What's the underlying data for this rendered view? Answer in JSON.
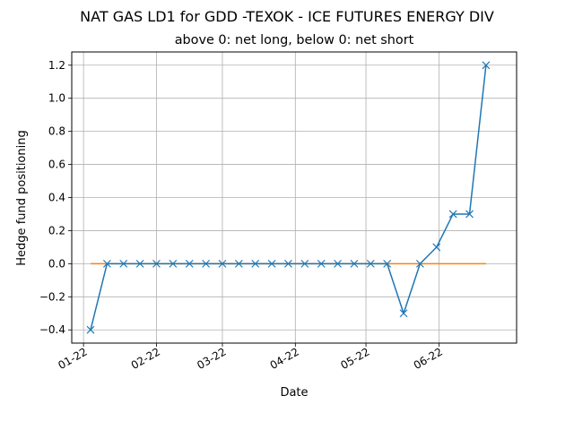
{
  "chart_data": {
    "type": "line",
    "title": "NAT GAS LD1 for GDD -TEXOK - ICE FUTURES ENERGY DIV",
    "subtitle": "above 0: net long, below 0: net short",
    "xlabel": "Date",
    "ylabel": "Hedge fund positioning",
    "x_ticks": [
      "2022-01-01",
      "2022-02-01",
      "2022-03-01",
      "2022-04-01",
      "2022-05-01",
      "2022-06-01"
    ],
    "x_tick_labels": [
      "01-22",
      "02-22",
      "03-22",
      "04-22",
      "05-22",
      "06-22"
    ],
    "y_ticks": [
      -0.4,
      -0.2,
      0.0,
      0.2,
      0.4,
      0.6,
      0.8,
      1.0,
      1.2
    ],
    "y_tick_labels": [
      "−0.4",
      "−0.2",
      "0.0",
      "0.2",
      "0.4",
      "0.6",
      "0.8",
      "1.0",
      "1.2"
    ],
    "xlim": [
      "2021-12-27",
      "2022-07-04"
    ],
    "ylim": [
      -0.48,
      1.28
    ],
    "grid": true,
    "series": [
      {
        "color": "#1f77b4",
        "marker": "x",
        "x": [
          "2022-01-04",
          "2022-01-11",
          "2022-01-18",
          "2022-01-25",
          "2022-02-01",
          "2022-02-08",
          "2022-02-15",
          "2022-02-22",
          "2022-03-01",
          "2022-03-08",
          "2022-03-15",
          "2022-03-22",
          "2022-03-29",
          "2022-04-05",
          "2022-04-12",
          "2022-04-19",
          "2022-04-26",
          "2022-05-03",
          "2022-05-10",
          "2022-05-17",
          "2022-05-24",
          "2022-05-31",
          "2022-06-07",
          "2022-06-14",
          "2022-06-21"
        ],
        "y": [
          -0.4,
          0.0,
          0.0,
          0.0,
          0.0,
          0.0,
          0.0,
          0.0,
          0.0,
          0.0,
          0.0,
          0.0,
          0.0,
          0.0,
          0.0,
          0.0,
          0.0,
          0.0,
          0.0,
          -0.3,
          0.0,
          0.1,
          0.3,
          0.3,
          1.2
        ]
      },
      {
        "color": "#ff7f0e",
        "marker": "none",
        "x": [
          "2022-01-04",
          "2022-06-21"
        ],
        "y": [
          0.0,
          0.0
        ]
      }
    ]
  }
}
